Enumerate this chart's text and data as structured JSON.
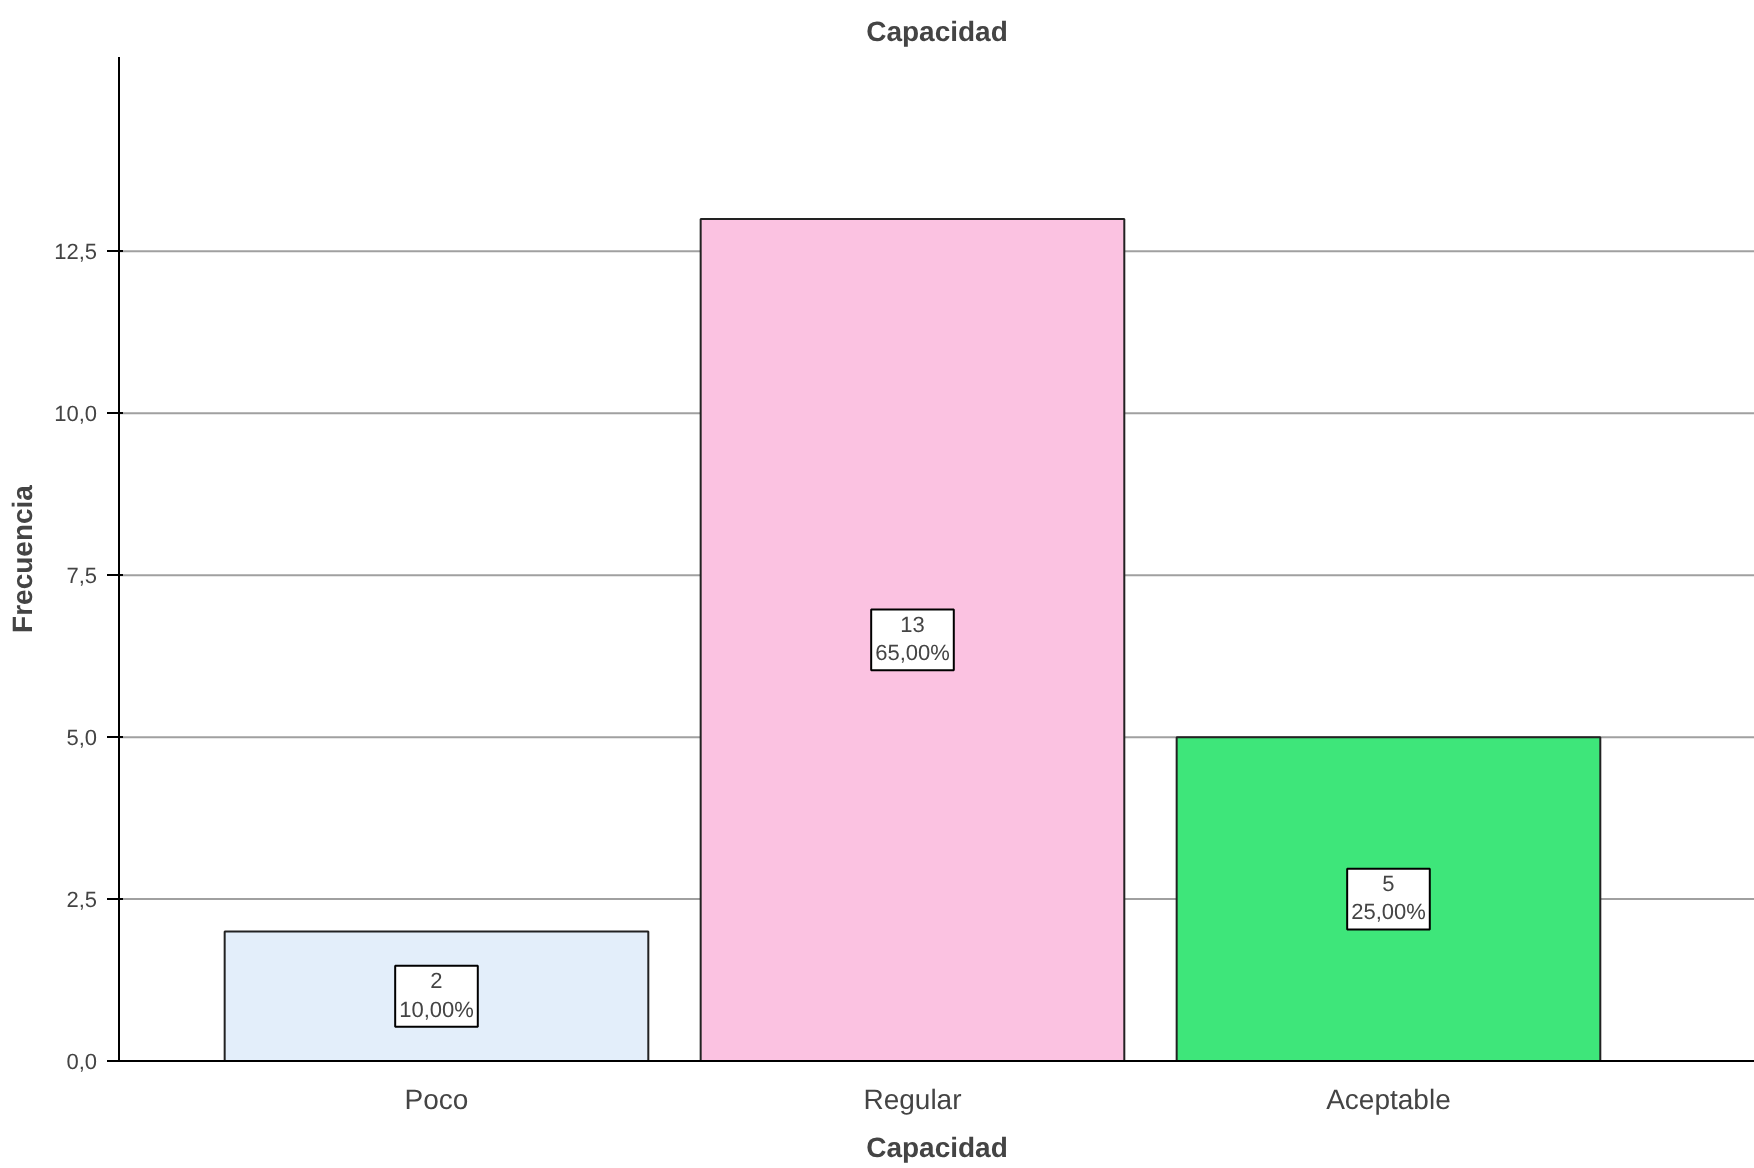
{
  "chart_data": {
    "type": "bar",
    "title": "Capacidad",
    "xlabel": "Capacidad",
    "ylabel": "Frecuencia",
    "categories": [
      "Poco",
      "Regular",
      "Aceptable"
    ],
    "values": [
      2,
      13,
      5
    ],
    "colors": [
      "#e3eefa",
      "#fbc2e1",
      "#3ee67a"
    ],
    "value_labels": [
      "2\n10,00%",
      "13\n65,00%",
      "5\n25,00%"
    ],
    "ylim": [
      0,
      15.5
    ],
    "yticks": [
      {
        "value": 0,
        "label": "0,0"
      },
      {
        "value": 2.5,
        "label": "2,5"
      },
      {
        "value": 5,
        "label": "5,0"
      },
      {
        "value": 7.5,
        "label": "7,5"
      },
      {
        "value": 10,
        "label": "10,0"
      },
      {
        "value": 12.5,
        "label": "12,5"
      }
    ],
    "grid": "y"
  }
}
